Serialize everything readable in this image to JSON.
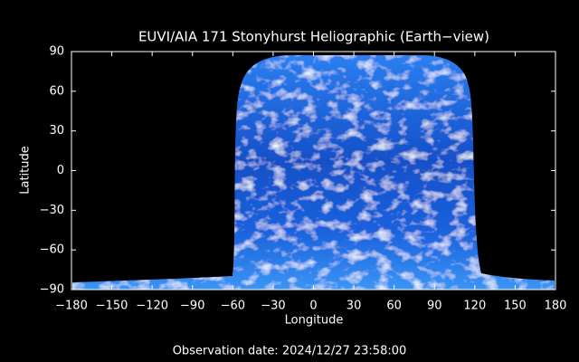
{
  "chart_data": {
    "type": "image",
    "title": "EUVI/AIA 171 Stonyhurst Heliographic (Earth−view)",
    "x_label": "Longitude",
    "y_label": "Latitude",
    "footer": "Observation date: 2024/12/27 23:58:00",
    "xlim": [
      -180,
      180
    ],
    "xticks": [
      {
        "value": -180,
        "label": "−180"
      },
      {
        "value": -150,
        "label": "−150"
      },
      {
        "value": -120,
        "label": "−120"
      },
      {
        "value": -90,
        "label": "−90"
      },
      {
        "value": -60,
        "label": "−60"
      },
      {
        "value": -30,
        "label": "−30"
      },
      0,
      30,
      60,
      90,
      120,
      150,
      180
    ],
    "ylim": [
      -90,
      90
    ],
    "yticks": [
      {
        "value": -90,
        "label": "−90"
      },
      {
        "value": -60,
        "label": "−60"
      },
      {
        "value": -30,
        "label": "−30"
      },
      0,
      30,
      60,
      90
    ]
  }
}
